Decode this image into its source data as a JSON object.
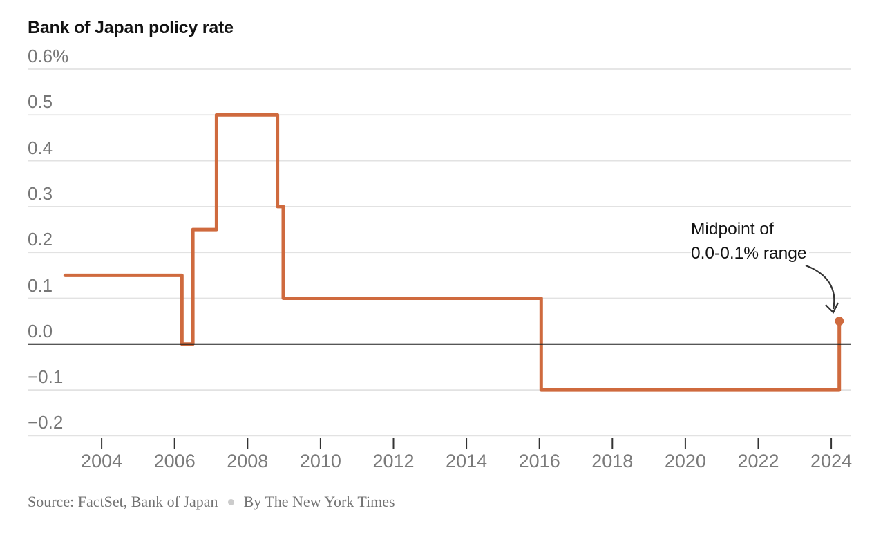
{
  "header": {
    "title": "Bank of Japan policy rate"
  },
  "chart_data": {
    "type": "line",
    "step": true,
    "title": "Bank of Japan policy rate",
    "unit": "percent",
    "ylim": [
      -0.2,
      0.6
    ],
    "xlim": [
      2002.95,
      2024.55
    ],
    "grid": true,
    "legend": "none",
    "y_ticks": [
      {
        "value": 0.6,
        "label": "0.6%"
      },
      {
        "value": 0.5,
        "label": "0.5"
      },
      {
        "value": 0.4,
        "label": "0.4"
      },
      {
        "value": 0.3,
        "label": "0.3"
      },
      {
        "value": 0.2,
        "label": "0.2"
      },
      {
        "value": 0.1,
        "label": "0.1"
      },
      {
        "value": 0.0,
        "label": "0.0"
      },
      {
        "value": -0.1,
        "label": "−0.1"
      },
      {
        "value": -0.2,
        "label": "−0.2"
      }
    ],
    "x_ticks": [
      {
        "value": 2004,
        "label": "2004"
      },
      {
        "value": 2006,
        "label": "2006"
      },
      {
        "value": 2008,
        "label": "2008"
      },
      {
        "value": 2010,
        "label": "2010"
      },
      {
        "value": 2012,
        "label": "2012"
      },
      {
        "value": 2014,
        "label": "2014"
      },
      {
        "value": 2016,
        "label": "2016"
      },
      {
        "value": 2018,
        "label": "2018"
      },
      {
        "value": 2020,
        "label": "2020"
      },
      {
        "value": 2022,
        "label": "2022"
      },
      {
        "value": 2024,
        "label": "2024"
      }
    ],
    "series": [
      {
        "name": "Bank of Japan policy rate",
        "points": [
          [
            2003.0,
            0.15
          ],
          [
            2006.2,
            0.15
          ],
          [
            2006.2,
            0.0
          ],
          [
            2006.5,
            0.0
          ],
          [
            2006.5,
            0.25
          ],
          [
            2007.15,
            0.25
          ],
          [
            2007.15,
            0.5
          ],
          [
            2008.82,
            0.5
          ],
          [
            2008.82,
            0.3
          ],
          [
            2008.98,
            0.3
          ],
          [
            2008.98,
            0.1
          ],
          [
            2016.05,
            0.1
          ],
          [
            2016.05,
            -0.1
          ],
          [
            2024.22,
            -0.1
          ],
          [
            2024.22,
            0.05
          ]
        ]
      }
    ],
    "endpoint": {
      "year": 2024.22,
      "rate": 0.05
    },
    "annotation": {
      "line1": "Midpoint of",
      "line2": "0.0-0.1% range"
    }
  },
  "footer": {
    "source": "Source: FactSet, Bank of Japan",
    "byline": "By The New York Times"
  },
  "colors": {
    "line": "#CF6A3E",
    "grid": "#E2E2E2",
    "zero_line": "#1F1F1F",
    "tick": "#333333",
    "arrow": "#333333",
    "title": "#121212",
    "label_gray": "#767676",
    "source_gray": "#737373",
    "bullet": "#CCCCCC"
  }
}
